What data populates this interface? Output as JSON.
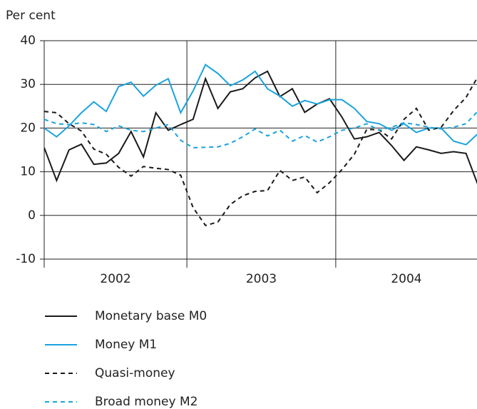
{
  "chart_data": {
    "type": "line",
    "y_axis_label": "Per cent",
    "categories": [
      null,
      null,
      null,
      null,
      null,
      null,
      null,
      null,
      null,
      null,
      null,
      null,
      null,
      null,
      null,
      null,
      null,
      null,
      null,
      null,
      null,
      null,
      null,
      null,
      null,
      null,
      null,
      null,
      null,
      null,
      null,
      null,
      null,
      null,
      null,
      null
    ],
    "year_labels": [
      "2002",
      "2003",
      "2004"
    ],
    "ylim": [
      -10,
      40
    ],
    "yticks": [
      -10,
      0,
      10,
      20,
      30,
      40
    ],
    "grid": true,
    "series": [
      {
        "name": "Monetary base M0",
        "color": "#1a1a1a",
        "dash": "solid",
        "values": [
          15.5,
          8,
          15,
          16.3,
          11.7,
          12,
          14.2,
          19.2,
          13.4,
          23.5,
          19.5,
          20.8,
          22,
          31.3,
          24.5,
          28.3,
          29,
          31.5,
          33,
          27.2,
          29,
          23.6,
          25.5,
          26.7,
          22.5,
          17.5,
          18,
          19,
          16,
          12.6,
          15.7,
          15,
          14.2,
          14.6,
          14.2,
          6.7
        ]
      },
      {
        "name": "Money M1",
        "color": "#1aa3dd",
        "dash": "solid",
        "values": [
          20,
          18,
          20.5,
          23.5,
          26,
          23.8,
          29.5,
          30.5,
          27.3,
          29.8,
          31.3,
          23.5,
          28.5,
          34.5,
          32.5,
          29.7,
          31,
          33,
          29,
          27.3,
          25,
          26.3,
          25.5,
          26.5,
          26.5,
          24.5,
          21.5,
          21,
          19.5,
          21,
          19,
          20,
          20,
          17,
          16.2,
          18.8
        ]
      },
      {
        "name": "Quasi-money",
        "color": "#1a1a1a",
        "dash": "dashed",
        "values": [
          23.8,
          23.5,
          21,
          19.3,
          15.2,
          14,
          11,
          9,
          11.2,
          10.8,
          10.5,
          9.2,
          1.8,
          -2.3,
          -1.5,
          2.5,
          4.5,
          5.5,
          5.7,
          10.3,
          8,
          8.8,
          5.2,
          7.5,
          10.5,
          14,
          19.7,
          19.6,
          17.5,
          22,
          24.5,
          19.5,
          20.2,
          24,
          27,
          32
        ]
      },
      {
        "name": "Broad money M2",
        "color": "#1aa3dd",
        "dash": "dashed",
        "values": [
          22,
          21,
          20.8,
          21.2,
          20.8,
          19.2,
          20.5,
          19.5,
          19.2,
          20,
          20.8,
          17.2,
          15.5,
          15.6,
          15.7,
          16.5,
          18,
          19.8,
          18.2,
          19.5,
          17,
          18.3,
          16.8,
          18,
          19.5,
          20,
          21,
          19.5,
          20.2,
          21.2,
          20.8,
          20.2,
          19.8,
          20.2,
          21,
          24
        ]
      }
    ]
  }
}
